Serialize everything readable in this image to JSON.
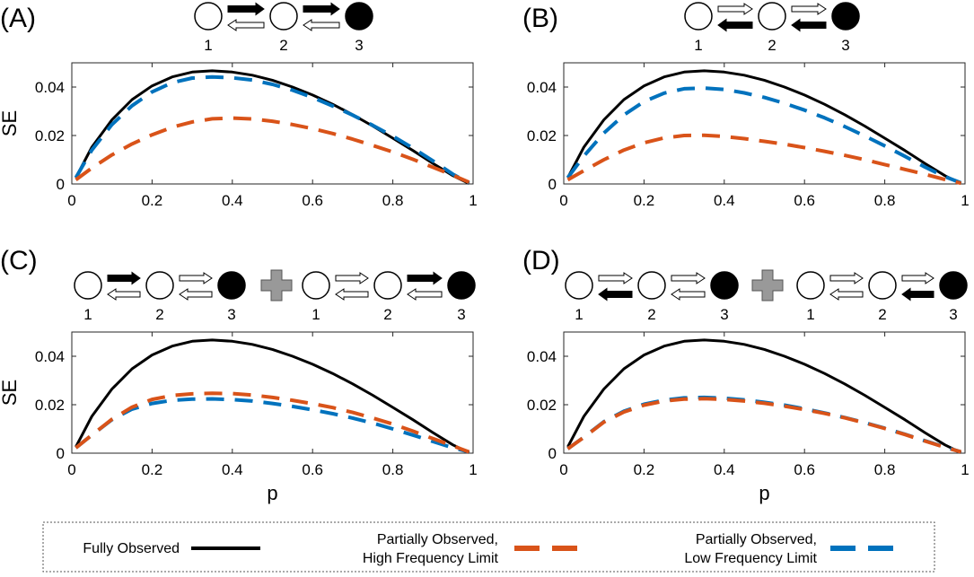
{
  "figure": {
    "panels": [
      {
        "label": "(A)",
        "ylabel": "SE",
        "xlabel": ""
      },
      {
        "label": "(B)",
        "ylabel": "",
        "xlabel": ""
      },
      {
        "label": "(C)",
        "ylabel": "SE",
        "xlabel": "p"
      },
      {
        "label": "(D)",
        "ylabel": "",
        "xlabel": "p"
      }
    ],
    "state_labels": [
      "1",
      "2",
      "3"
    ],
    "schematics": [
      {
        "panel": "(A)",
        "models": [
          {
            "forward": [
              "filled",
              "filled"
            ],
            "backward": [
              "open",
              "open"
            ]
          }
        ]
      },
      {
        "panel": "(B)",
        "models": [
          {
            "forward": [
              "open",
              "open"
            ],
            "backward": [
              "filled",
              "filled"
            ]
          }
        ]
      },
      {
        "panel": "(C)",
        "models": [
          {
            "forward": [
              "filled",
              "open"
            ],
            "backward": [
              "open",
              "open"
            ]
          },
          {
            "forward": [
              "open",
              "filled"
            ],
            "backward": [
              "open",
              "open"
            ]
          }
        ]
      },
      {
        "panel": "(D)",
        "models": [
          {
            "forward": [
              "open",
              "open"
            ],
            "backward": [
              "filled",
              "open"
            ]
          },
          {
            "forward": [
              "open",
              "open"
            ],
            "backward": [
              "open",
              "filled"
            ]
          }
        ]
      }
    ],
    "legend": {
      "entries": [
        {
          "lines": [
            "Fully Observed"
          ],
          "color": "#000000",
          "style": "solid"
        },
        {
          "lines": [
            "Partially Observed,",
            "High Frequency Limit"
          ],
          "color": "#D95319",
          "style": "dashed"
        },
        {
          "lines": [
            "Partially Observed,",
            "Low Frequency Limit"
          ],
          "color": "#0072BD",
          "style": "dashed"
        }
      ]
    },
    "colors": {
      "fully": "#000000",
      "high": "#D95319",
      "low": "#0072BD",
      "plus": "#999999"
    }
  },
  "chart_data": [
    {
      "panel": "(A)",
      "type": "line",
      "xlabel": "",
      "ylabel": "SE",
      "xlim": [
        0,
        1
      ],
      "ylim": [
        0,
        0.05
      ],
      "xticks": [
        0,
        0.2,
        0.4,
        0.6,
        0.8,
        1
      ],
      "xtick_labels": [
        "0",
        "0.2",
        "0.4",
        "0.6",
        "0.8",
        "1"
      ],
      "yticks": [
        0,
        0.02,
        0.04
      ],
      "ytick_labels": [
        "0",
        "0.02",
        "0.04"
      ],
      "x": [
        0.01,
        0.05,
        0.1,
        0.15,
        0.2,
        0.25,
        0.3,
        0.35,
        0.4,
        0.45,
        0.5,
        0.55,
        0.6,
        0.65,
        0.7,
        0.75,
        0.8,
        0.85,
        0.9,
        0.95,
        0.99
      ],
      "series": [
        {
          "name": "Fully Observed",
          "values": [
            0.0026,
            0.0152,
            0.0265,
            0.0348,
            0.0405,
            0.0442,
            0.0462,
            0.0467,
            0.0462,
            0.0449,
            0.0428,
            0.04,
            0.0367,
            0.0329,
            0.0286,
            0.0239,
            0.0189,
            0.0138,
            0.0085,
            0.0034,
            0.0002
          ]
        },
        {
          "name": "Partially Observed, High Frequency Limit",
          "values": [
            0.0017,
            0.0066,
            0.012,
            0.0165,
            0.0203,
            0.0234,
            0.0256,
            0.0269,
            0.0272,
            0.0268,
            0.0259,
            0.0245,
            0.0228,
            0.0208,
            0.0185,
            0.0159,
            0.0132,
            0.0102,
            0.0069,
            0.0036,
            0.0007
          ]
        },
        {
          "name": "Partially Observed, Low Frequency Limit",
          "values": [
            0.0026,
            0.014,
            0.0245,
            0.0323,
            0.038,
            0.0418,
            0.0437,
            0.0442,
            0.0438,
            0.0429,
            0.0411,
            0.0387,
            0.0357,
            0.0322,
            0.0284,
            0.0242,
            0.0197,
            0.0148,
            0.0095,
            0.004,
            0.0004
          ]
        }
      ]
    },
    {
      "panel": "(B)",
      "type": "line",
      "xlabel": "",
      "ylabel": "",
      "xlim": [
        0,
        1
      ],
      "ylim": [
        0,
        0.05
      ],
      "xticks": [
        0,
        0.2,
        0.4,
        0.6,
        0.8,
        1
      ],
      "xtick_labels": [
        "0",
        "0.2",
        "0.4",
        "0.6",
        "0.8",
        "1"
      ],
      "yticks": [
        0,
        0.02,
        0.04
      ],
      "ytick_labels": [
        "0",
        "0.02",
        "0.04"
      ],
      "x": [
        0.01,
        0.05,
        0.1,
        0.15,
        0.2,
        0.25,
        0.3,
        0.35,
        0.4,
        0.45,
        0.5,
        0.55,
        0.6,
        0.65,
        0.7,
        0.75,
        0.8,
        0.85,
        0.9,
        0.95,
        0.99
      ],
      "series": [
        {
          "name": "Fully Observed",
          "values": [
            0.0026,
            0.0152,
            0.0265,
            0.0348,
            0.0405,
            0.0442,
            0.0462,
            0.0467,
            0.0462,
            0.0449,
            0.0428,
            0.04,
            0.0367,
            0.0329,
            0.0286,
            0.0239,
            0.0189,
            0.0138,
            0.0085,
            0.0034,
            0.0002
          ]
        },
        {
          "name": "Partially Observed, High Frequency Limit",
          "values": [
            0.0017,
            0.0055,
            0.01,
            0.014,
            0.017,
            0.019,
            0.02,
            0.0201,
            0.0196,
            0.0187,
            0.0176,
            0.0164,
            0.015,
            0.0135,
            0.0118,
            0.01,
            0.008,
            0.006,
            0.004,
            0.0018,
            0.0003
          ]
        },
        {
          "name": "Partially Observed, Low Frequency Limit",
          "values": [
            0.0026,
            0.0115,
            0.021,
            0.0285,
            0.034,
            0.0375,
            0.0393,
            0.0396,
            0.039,
            0.0376,
            0.0357,
            0.0333,
            0.0305,
            0.0273,
            0.0237,
            0.0198,
            0.0157,
            0.0114,
            0.007,
            0.003,
            0.0005
          ]
        }
      ]
    },
    {
      "panel": "(C)",
      "type": "line",
      "xlabel": "p",
      "ylabel": "SE",
      "xlim": [
        0,
        1
      ],
      "ylim": [
        0,
        0.05
      ],
      "xticks": [
        0,
        0.2,
        0.4,
        0.6,
        0.8,
        1
      ],
      "xtick_labels": [
        "0",
        "0.2",
        "0.4",
        "0.6",
        "0.8",
        "1"
      ],
      "yticks": [
        0,
        0.02,
        0.04
      ],
      "ytick_labels": [
        "0",
        "0.02",
        "0.04"
      ],
      "x": [
        0.01,
        0.05,
        0.1,
        0.15,
        0.2,
        0.25,
        0.3,
        0.35,
        0.4,
        0.45,
        0.5,
        0.55,
        0.6,
        0.65,
        0.7,
        0.75,
        0.8,
        0.85,
        0.9,
        0.95,
        0.99
      ],
      "series": [
        {
          "name": "Fully Observed",
          "values": [
            0.0026,
            0.0152,
            0.0265,
            0.0348,
            0.0405,
            0.0442,
            0.0462,
            0.0467,
            0.0462,
            0.0449,
            0.0428,
            0.04,
            0.0367,
            0.0329,
            0.0286,
            0.0239,
            0.0189,
            0.0138,
            0.0085,
            0.0034,
            0.0002
          ]
        },
        {
          "name": "Partially Observed, High Frequency Limit",
          "values": [
            0.0022,
            0.0075,
            0.014,
            0.019,
            0.0222,
            0.0238,
            0.0245,
            0.0247,
            0.0246,
            0.024,
            0.023,
            0.0218,
            0.0204,
            0.0188,
            0.0168,
            0.0145,
            0.012,
            0.0091,
            0.006,
            0.003,
            0.0005
          ]
        },
        {
          "name": "Partially Observed, Low Frequency Limit",
          "values": [
            0.0022,
            0.0075,
            0.0138,
            0.0182,
            0.0205,
            0.0218,
            0.0223,
            0.0224,
            0.0221,
            0.0215,
            0.0205,
            0.0193,
            0.0179,
            0.0163,
            0.0145,
            0.0124,
            0.01,
            0.0075,
            0.0048,
            0.0022,
            0.0005
          ]
        }
      ]
    },
    {
      "panel": "(D)",
      "type": "line",
      "xlabel": "p",
      "ylabel": "",
      "xlim": [
        0,
        1
      ],
      "ylim": [
        0,
        0.05
      ],
      "xticks": [
        0,
        0.2,
        0.4,
        0.6,
        0.8,
        1
      ],
      "xtick_labels": [
        "0",
        "0.2",
        "0.4",
        "0.6",
        "0.8",
        "1"
      ],
      "yticks": [
        0,
        0.02,
        0.04
      ],
      "ytick_labels": [
        "0",
        "0.02",
        "0.04"
      ],
      "x": [
        0.01,
        0.05,
        0.1,
        0.15,
        0.2,
        0.25,
        0.3,
        0.35,
        0.4,
        0.45,
        0.5,
        0.55,
        0.6,
        0.65,
        0.7,
        0.75,
        0.8,
        0.85,
        0.9,
        0.95,
        0.99
      ],
      "series": [
        {
          "name": "Fully Observed",
          "values": [
            0.0026,
            0.0152,
            0.0265,
            0.0348,
            0.0405,
            0.0442,
            0.0462,
            0.0467,
            0.0462,
            0.0449,
            0.0428,
            0.04,
            0.0367,
            0.0329,
            0.0286,
            0.0239,
            0.0189,
            0.0138,
            0.0085,
            0.0034,
            0.0002
          ]
        },
        {
          "name": "Partially Observed, High Frequency Limit",
          "values": [
            0.0018,
            0.0065,
            0.0128,
            0.017,
            0.0198,
            0.0215,
            0.0223,
            0.0225,
            0.0222,
            0.0215,
            0.0206,
            0.0194,
            0.018,
            0.0164,
            0.0146,
            0.0125,
            0.0102,
            0.0077,
            0.005,
            0.0024,
            0.0005
          ]
        },
        {
          "name": "Partially Observed, Low Frequency Limit",
          "values": [
            0.0018,
            0.0066,
            0.013,
            0.0173,
            0.0202,
            0.0219,
            0.0228,
            0.023,
            0.0227,
            0.022,
            0.021,
            0.0198,
            0.0183,
            0.0166,
            0.0147,
            0.0126,
            0.0103,
            0.0078,
            0.0051,
            0.0025,
            0.0005
          ]
        }
      ]
    }
  ]
}
